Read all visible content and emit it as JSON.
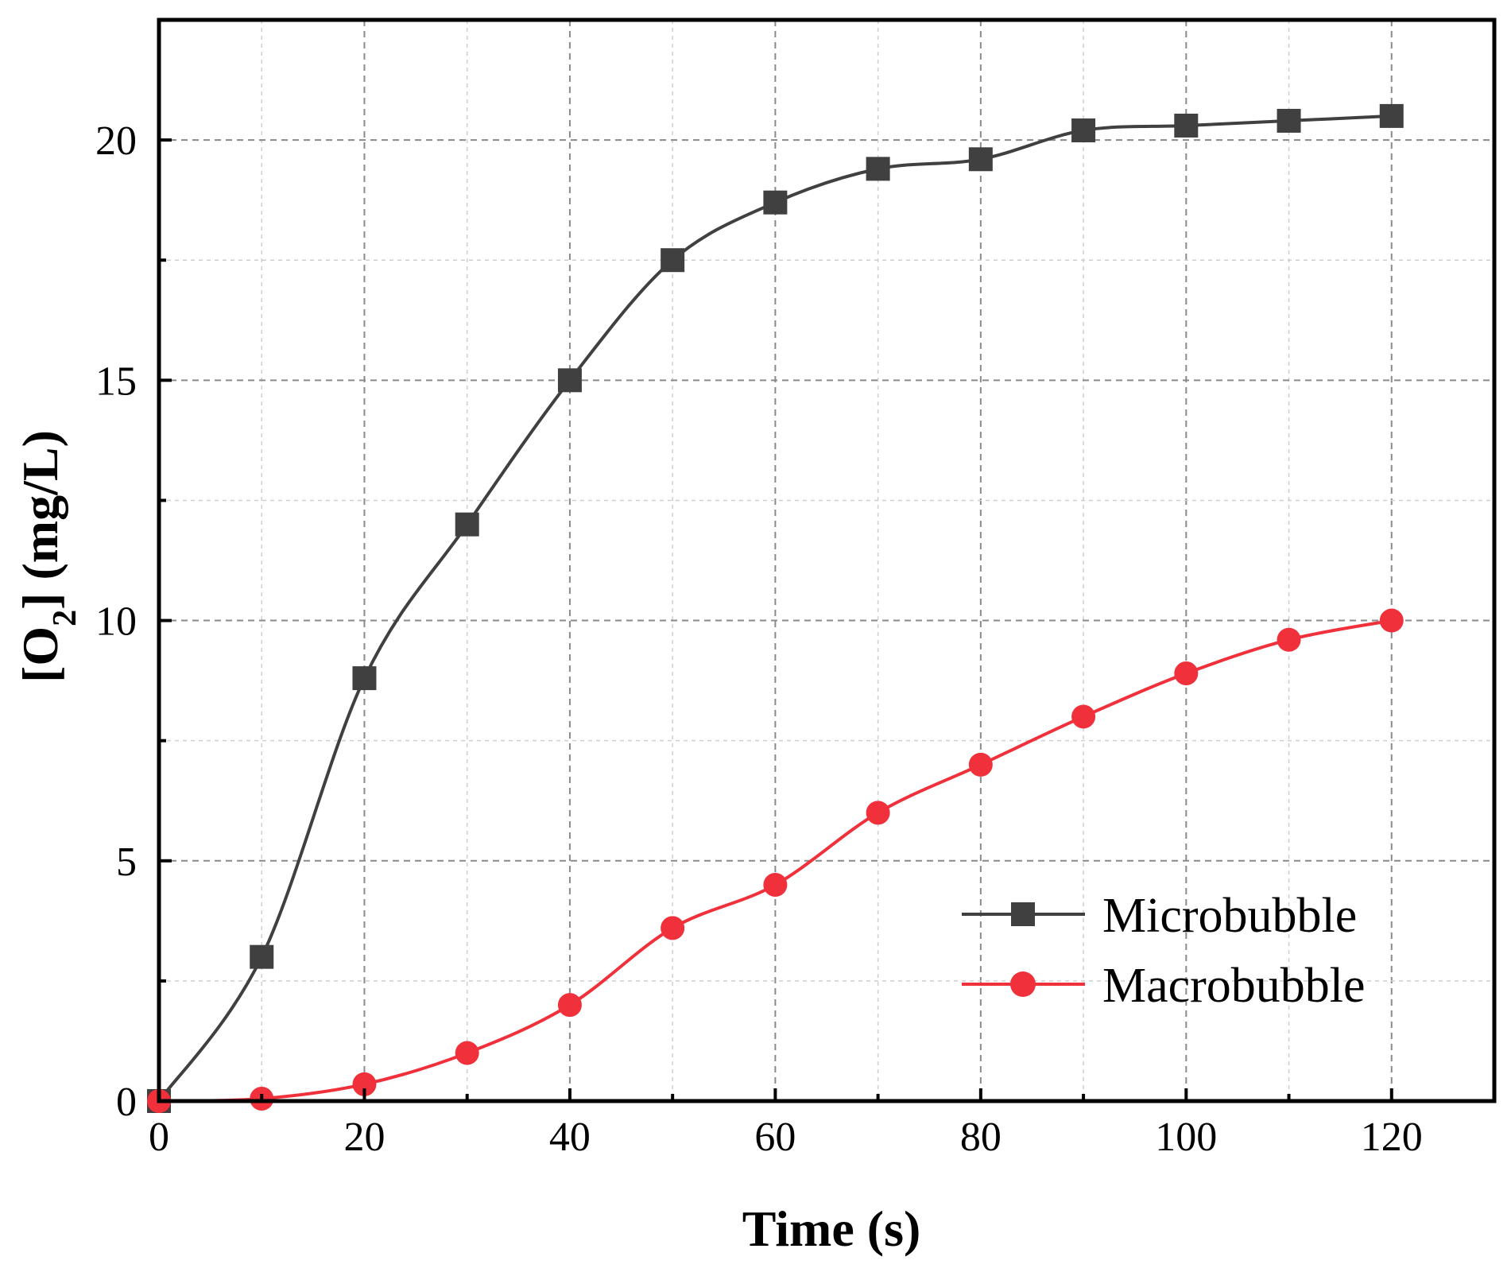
{
  "chart_data": {
    "type": "line",
    "title": "",
    "xlabel": "Time (s)",
    "ylabel": "[O2] (mg/L)",
    "ylabel_parts": {
      "open": "[O",
      "sub": "2",
      "close": "] (mg/L)"
    },
    "xlim": [
      0,
      130
    ],
    "ylim": [
      0,
      22.5
    ],
    "x_ticks": [
      0,
      20,
      40,
      60,
      80,
      100,
      120
    ],
    "x_tick_labels": [
      "0",
      "20",
      "40",
      "60",
      "80",
      "100",
      "120"
    ],
    "y_ticks": [
      0,
      5,
      10,
      15,
      20
    ],
    "y_tick_labels": [
      "0",
      "5",
      "10",
      "15",
      "20"
    ],
    "grid": true,
    "legend_position": "lower-right",
    "series": [
      {
        "name": "Microbubble",
        "marker": "square",
        "color": "#404040",
        "x": [
          0,
          10,
          20,
          30,
          40,
          50,
          60,
          70,
          80,
          90,
          100,
          110,
          120
        ],
        "y": [
          0,
          3.0,
          8.8,
          12.0,
          15.0,
          17.5,
          18.7,
          19.4,
          19.6,
          20.2,
          20.3,
          20.4,
          20.5
        ]
      },
      {
        "name": "Macrobubble",
        "marker": "circle",
        "color": "#f0303a",
        "x": [
          0,
          10,
          20,
          30,
          40,
          50,
          60,
          70,
          80,
          90,
          100,
          110,
          120
        ],
        "y": [
          0,
          0.05,
          0.35,
          1.0,
          2.0,
          3.6,
          4.5,
          6.0,
          7.0,
          8.0,
          8.9,
          9.6,
          10.0
        ]
      }
    ]
  }
}
